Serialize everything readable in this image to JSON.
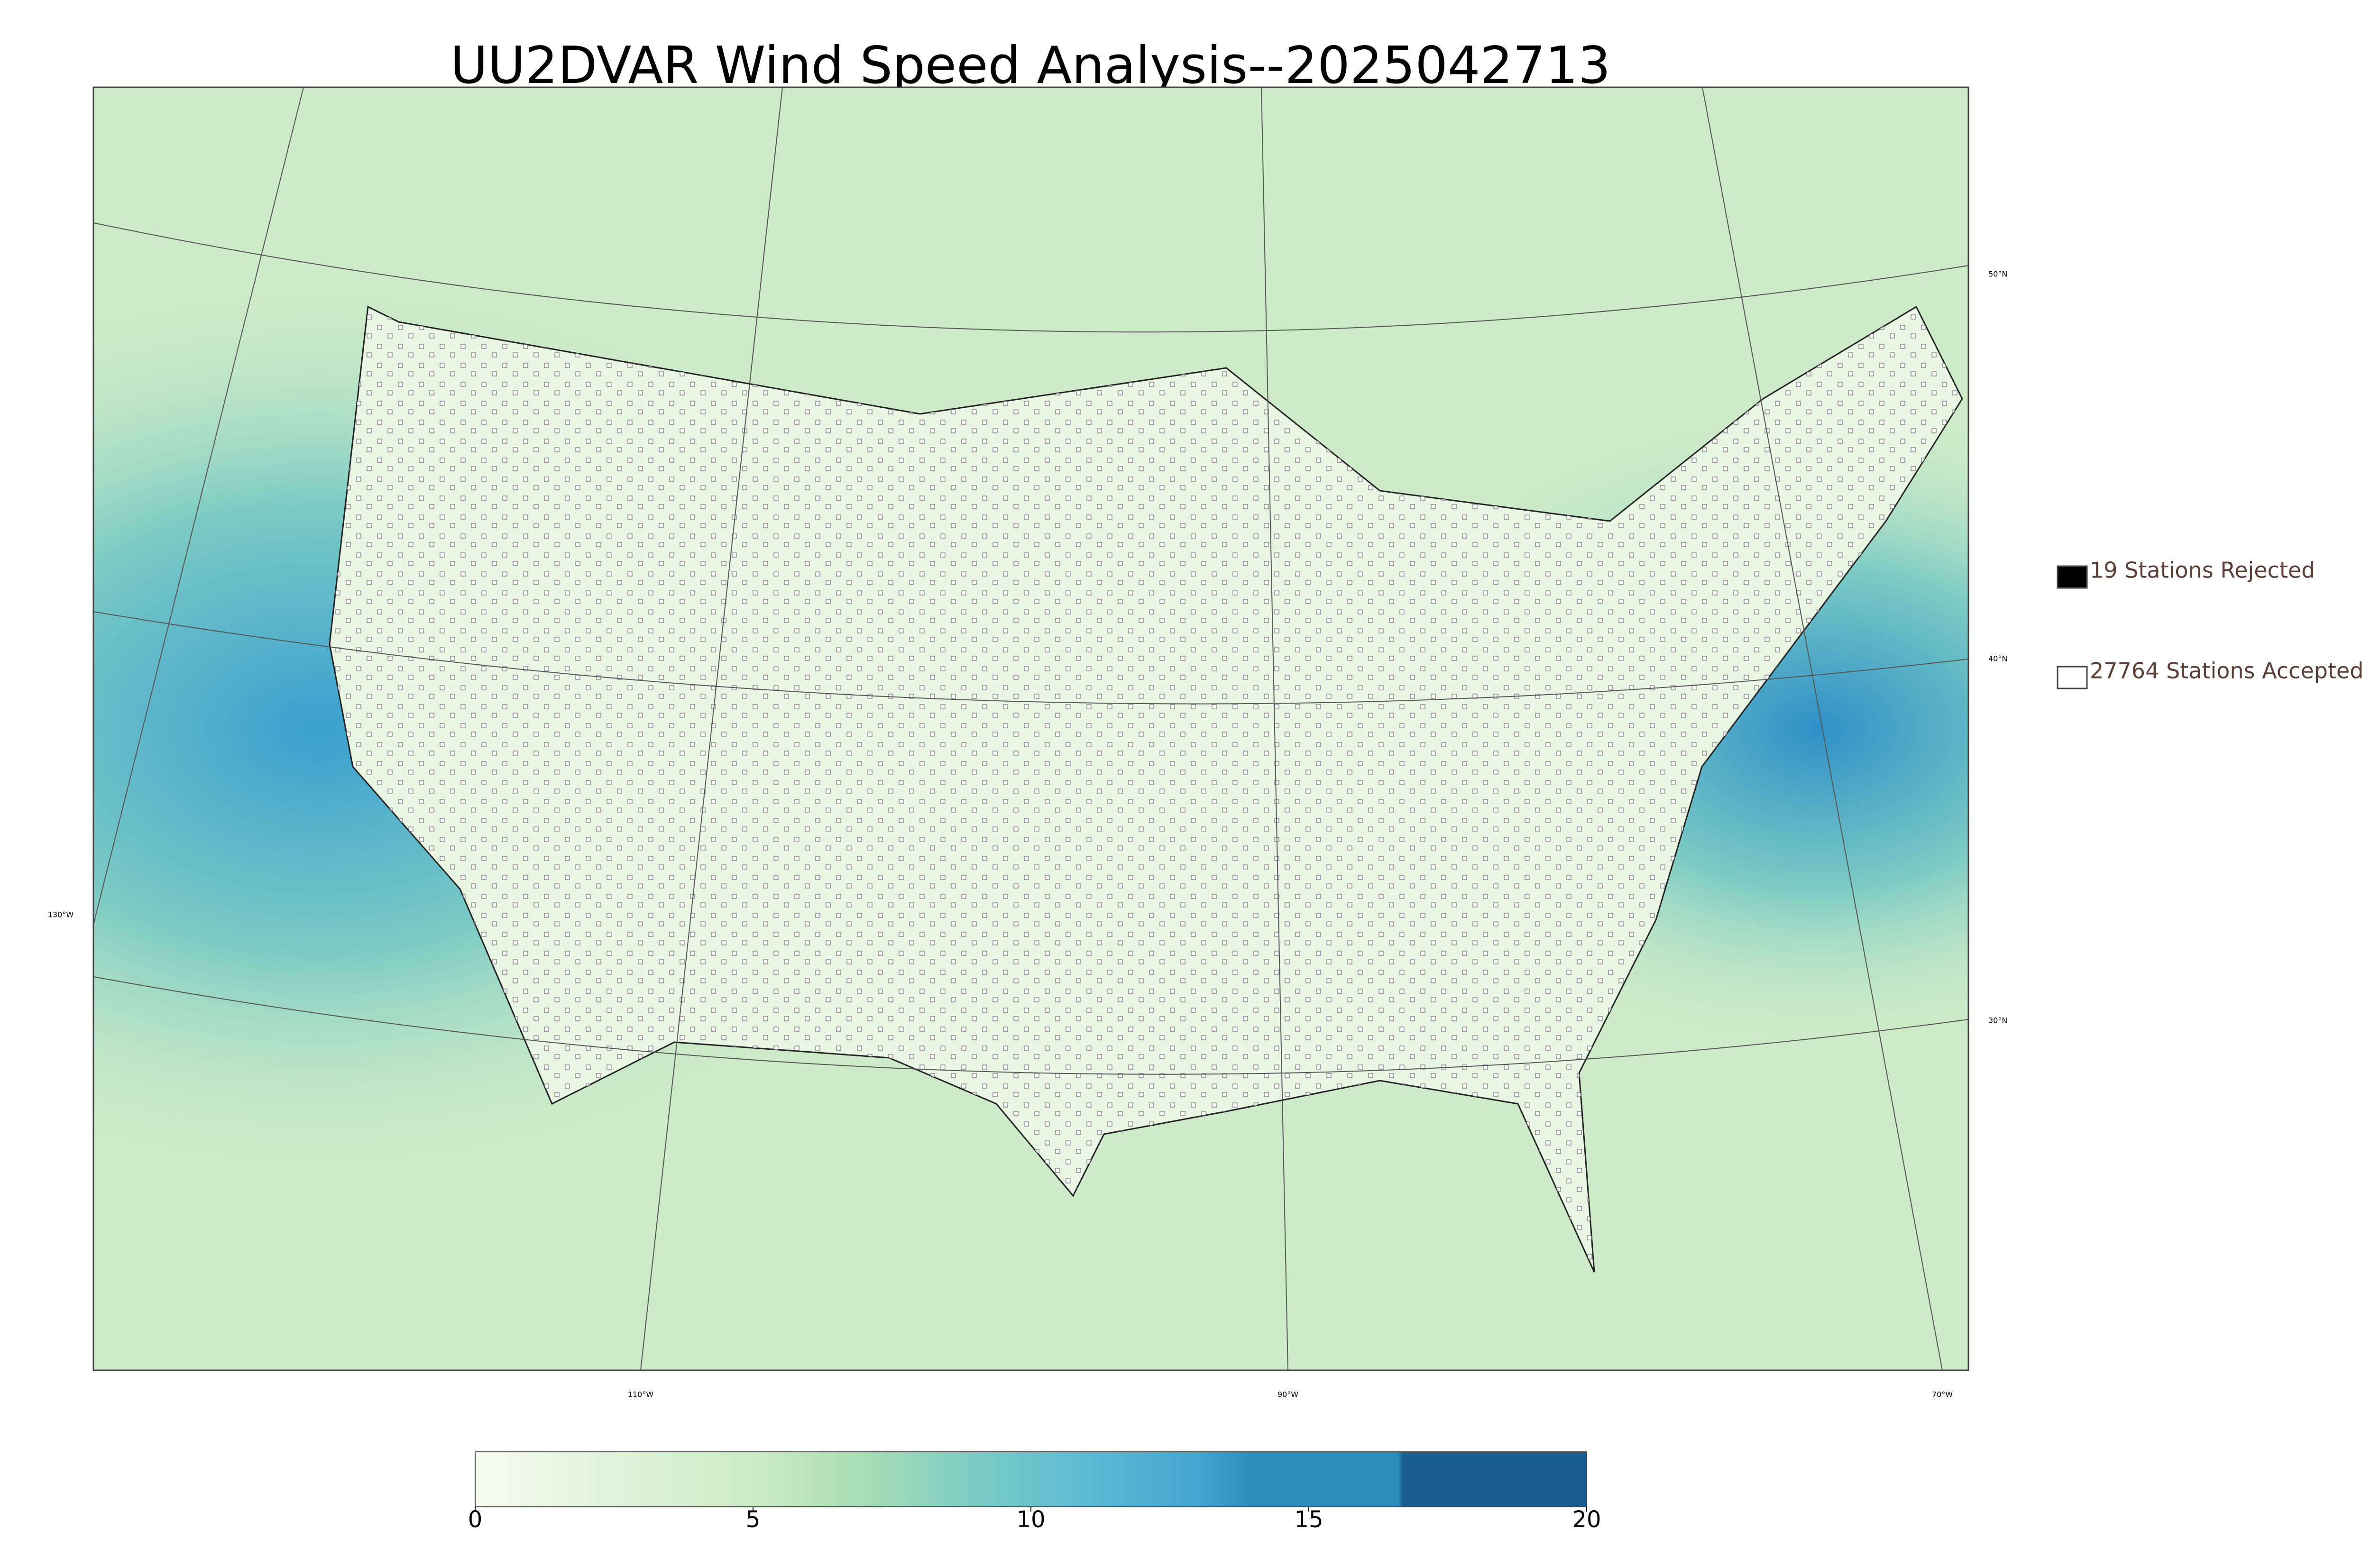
{
  "title": "UU2DVAR Wind Speed Analysis--2025042713",
  "legend": [
    {
      "label": "19 Stations Rejected",
      "marker_color": "#000000"
    },
    {
      "label": "27764 Stations Accepted",
      "marker_color": "#ffffff"
    }
  ],
  "map": {
    "latitude_labels": [
      "50°N",
      "40°N",
      "30°N"
    ],
    "longitude_labels": [
      "130°W",
      "110°W",
      "90°W",
      "70°W"
    ]
  },
  "colorbar": {
    "range": [
      0,
      20
    ],
    "ticks": [
      0,
      5,
      10,
      15,
      20
    ],
    "stops": [
      {
        "value": 0,
        "color": "#f7fcf0"
      },
      {
        "value": 2.5,
        "color": "#e0f3db"
      },
      {
        "value": 5,
        "color": "#ccebc5"
      },
      {
        "value": 7,
        "color": "#a8ddb5"
      },
      {
        "value": 9,
        "color": "#7bccc4"
      },
      {
        "value": 11,
        "color": "#5cbad4"
      },
      {
        "value": 13,
        "color": "#44a5d0"
      },
      {
        "value": 14,
        "color": "#2b8cbe"
      },
      {
        "value": 16.6,
        "color": "#2b8cbe"
      },
      {
        "value": 16.7,
        "color": "#1a5e90"
      },
      {
        "value": 20,
        "color": "#1a5e90"
      }
    ]
  }
}
